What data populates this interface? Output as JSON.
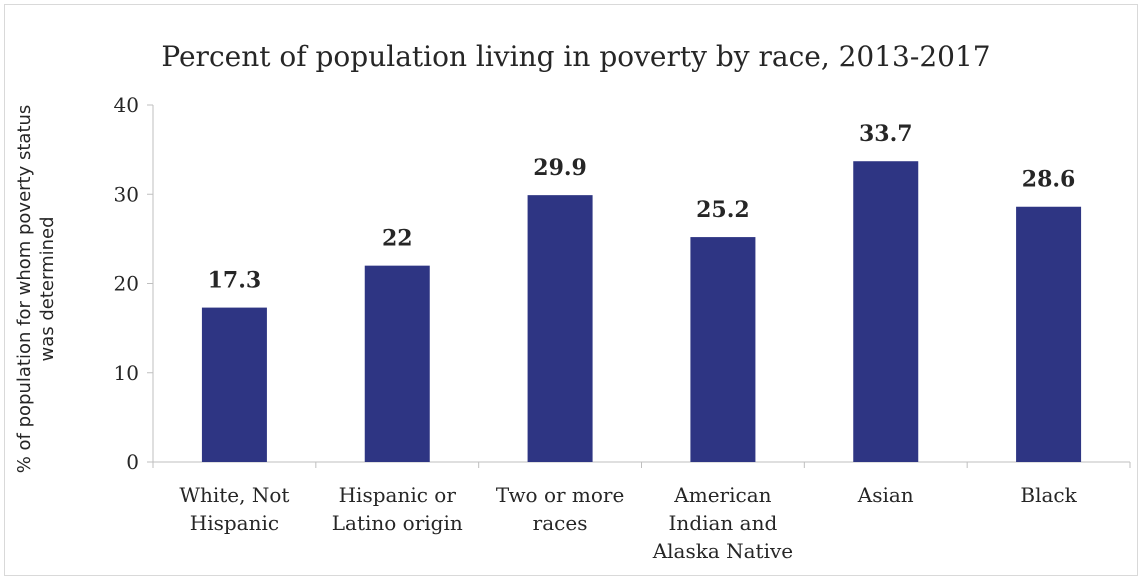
{
  "chart_data": {
    "type": "bar",
    "title": "Percent of population living in poverty by race, 2013-2017",
    "xlabel": "",
    "ylabel_lines": [
      "% of population for whom poverty status",
      "was determined"
    ],
    "categories": [
      [
        "White, Not",
        "Hispanic"
      ],
      [
        "Hispanic or",
        "Latino origin"
      ],
      [
        "Two or more",
        "races"
      ],
      [
        "American",
        "Indian and",
        "Alaska Native"
      ],
      [
        "Asian"
      ],
      [
        "Black"
      ]
    ],
    "values": [
      17.3,
      22,
      29.9,
      25.2,
      33.7,
      28.6
    ],
    "data_labels": [
      "17.3",
      "22",
      "29.9",
      "25.2",
      "33.7",
      "28.6"
    ],
    "ylim": [
      0,
      40
    ],
    "yticks": [
      0,
      10,
      20,
      30,
      40
    ],
    "bar_color": "#2e3583",
    "grid": false,
    "legend": "none"
  }
}
